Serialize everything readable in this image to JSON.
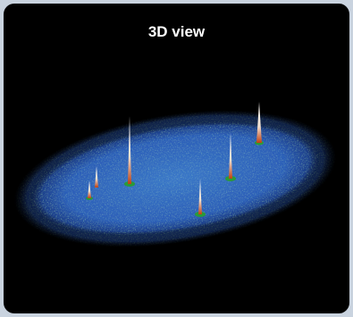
{
  "title": "3D view"
}
